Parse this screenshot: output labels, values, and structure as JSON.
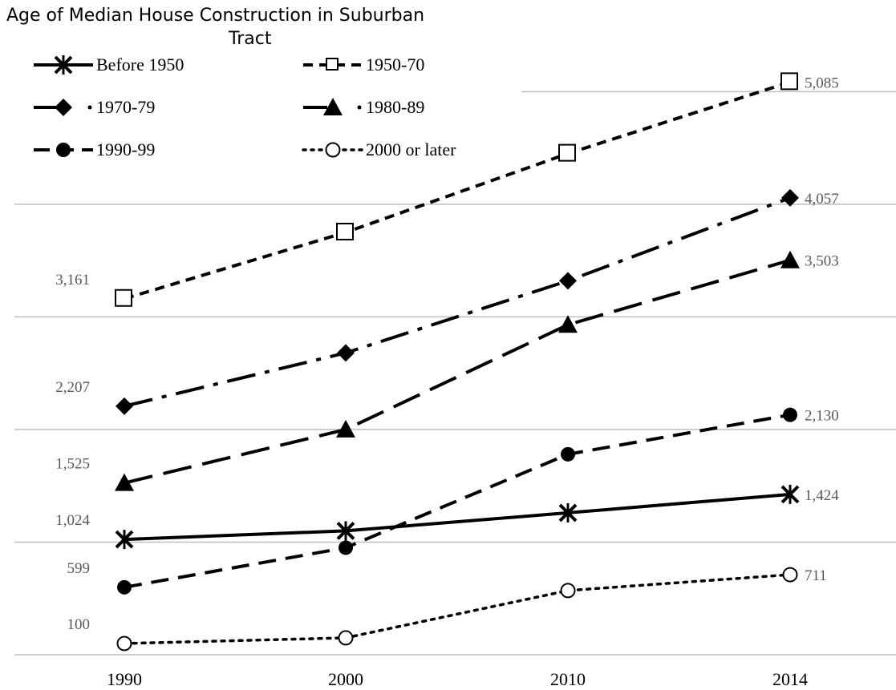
{
  "chart_data": {
    "type": "line",
    "title": "Age of Median House Construction in Suburban Tract",
    "categories": [
      "1990",
      "2000",
      "2010",
      "2014"
    ],
    "ylim": [
      0,
      5600
    ],
    "grid": true,
    "legend_position": "top-left",
    "series": [
      {
        "name": "Before 1950",
        "values": [
          1024,
          1100,
          1260,
          1424
        ],
        "marker": "asterisk",
        "dash": "solid",
        "labels": [
          "1,024",
          "",
          "",
          "1,424"
        ]
      },
      {
        "name": "1950-70",
        "values": [
          3161,
          3750,
          4450,
          5085
        ],
        "marker": "square-open",
        "dash": "short-dash",
        "labels": [
          "3,161",
          "",
          "",
          "5,085"
        ]
      },
      {
        "name": "1970-79",
        "values": [
          2207,
          2680,
          3320,
          4057
        ],
        "marker": "diamond",
        "dash": "dash-dot",
        "labels": [
          "2,207",
          "",
          "",
          "4,057"
        ]
      },
      {
        "name": "1980-89",
        "values": [
          1525,
          2000,
          2930,
          3503
        ],
        "marker": "triangle",
        "dash": "long-dash",
        "labels": [
          "1,525",
          "",
          "",
          "3,503"
        ]
      },
      {
        "name": "1990-99",
        "values": [
          599,
          950,
          1780,
          2130
        ],
        "marker": "circle-filled",
        "dash": "dash",
        "labels": [
          "599",
          "",
          "",
          "2,130"
        ]
      },
      {
        "name": "2000 or later",
        "values": [
          100,
          150,
          570,
          711
        ],
        "marker": "circle-open",
        "dash": "dot",
        "labels": [
          "100",
          "",
          "",
          "711"
        ]
      }
    ]
  }
}
